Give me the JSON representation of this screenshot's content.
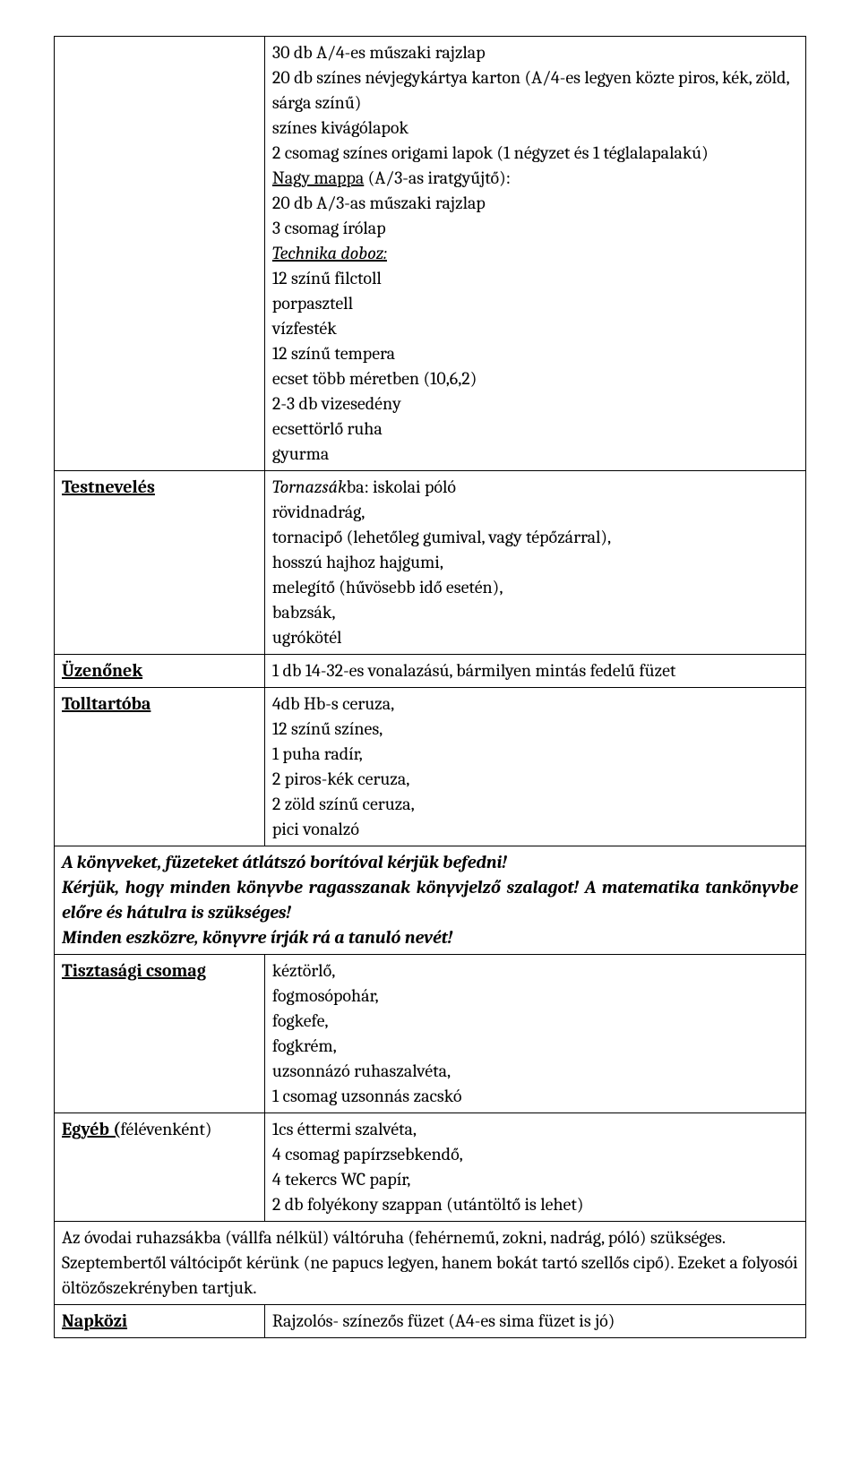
{
  "row1": {
    "label": "",
    "lines": [
      "30 db A/4-es műszaki rajzlap",
      "20 db színes névjegykártya karton (A/4-es legyen közte piros, kék, zöld, sárga színű)",
      "színes kivágólapok",
      "2 csomag színes origami lapok (1 négyzet és 1 téglalapalakú)"
    ],
    "underline1": "Nagy mappa",
    "after_underline1": " (A/3-as iratgyűjtő):",
    "mappa_lines": [
      "20 db A/3-as műszaki rajzlap",
      "3 csomag írólap"
    ],
    "italic_underline": "Technika doboz:",
    "tech_lines": [
      "12 színű filctoll",
      "porpasztell",
      "vízfesték",
      "12 színű tempera",
      "ecset több méretben (10,6,2)",
      "2-3 db vizesedény",
      "ecsettörlő ruha",
      "gyurma"
    ]
  },
  "row2": {
    "label": "Testnevelés",
    "italic_prefix": "Tornazsák",
    "after_italic": "ba: iskolai póló",
    "lines": [
      "rövidnadrág,",
      "tornacipő (lehetőleg gumival, vagy tépőzárral),",
      "hosszú hajhoz hajgumi,",
      "melegítő (hűvösebb idő esetén),",
      "babzsák,",
      "ugrókötél"
    ]
  },
  "row3": {
    "label": "Üzenőnek",
    "content": "1 db 14-32-es vonalazású, bármilyen mintás fedelű füzet"
  },
  "row4": {
    "label": "Tolltartóba",
    "lines": [
      "4db Hb-s ceruza,",
      "12 színű színes,",
      "1 puha radír,",
      "2 piros-kék ceruza,",
      "2 zöld színű ceruza,",
      "pici vonalzó"
    ]
  },
  "row5": {
    "line1": "A könyveket, füzeteket átlátszó borítóval kérjük befedni!",
    "line2": "Kérjük, hogy minden könyvbe ragasszanak könyvjelző szalagot! A matematika tankönyvbe előre és hátulra is szükséges!",
    "line3": "Minden eszközre, könyvre írják rá a tanuló nevét!"
  },
  "row6": {
    "label": "Tisztasági csomag",
    "lines": [
      "kéztörlő,",
      "fogmosópohár,",
      "fogkefe,",
      "fogkrém,",
      "uzsonnázó ruhaszalvéta,",
      "1 csomag uzsonnás zacskó"
    ]
  },
  "row7": {
    "label_bold": "Egyéb (",
    "label_plain": "félévenként)",
    "lines": [
      "1cs éttermi szalvéta,",
      "4 csomag papírzsebkendő,",
      "4 tekercs WC papír,",
      "2 db folyékony szappan (utántöltő is lehet)"
    ]
  },
  "row8": {
    "line1": "Az óvodai ruhazsákba (vállfa nélkül) váltóruha (fehérnemű, zokni, nadrág, póló) szükséges.",
    "line2": "Szeptembertől váltócipőt kérünk (ne papucs legyen, hanem bokát tartó szellős cipő). Ezeket a folyosói öltözőszekrényben tartjuk."
  },
  "row9": {
    "label": "Napközi",
    "content": "Rajzolós- színezős füzet (A4-es sima füzet is jó)"
  }
}
